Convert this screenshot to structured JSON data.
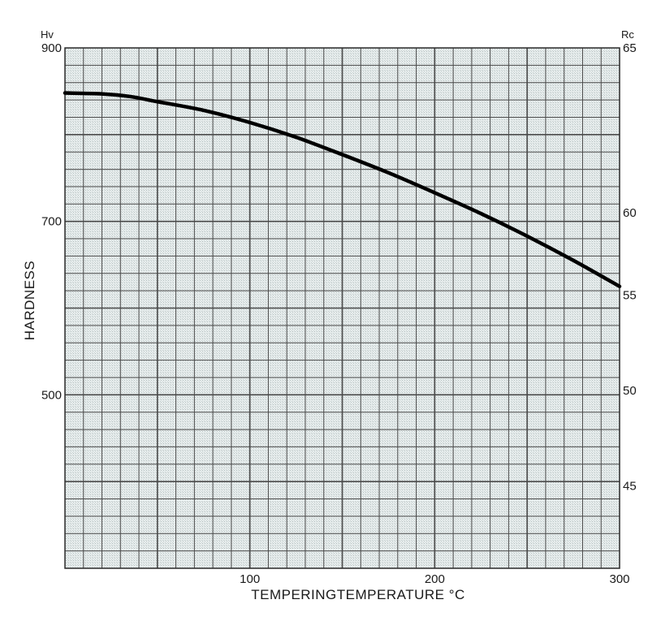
{
  "chart_data": {
    "type": "line",
    "title": "",
    "xlabel": "TEMPERINGTEMPERATURE °C",
    "ylabel": "HARDNESS",
    "left_axis_unit": "Hv",
    "right_axis_unit": "Rc",
    "xlim": [
      0,
      300
    ],
    "ylim": [
      300,
      900
    ],
    "x_ticks": [
      "100",
      "200",
      "300"
    ],
    "y_ticks": [
      "900",
      "700",
      "500"
    ],
    "right_ticks": [
      "65",
      "60",
      "55",
      "50",
      "45"
    ],
    "grid": true,
    "line_color": "#000000",
    "grid_color": "#4a4a4a",
    "background_color": "#dfe6e6",
    "series": [
      {
        "x": [
          0,
          20,
          35,
          50,
          75,
          100,
          125,
          150,
          175,
          200,
          225,
          250,
          275,
          300
        ],
        "y": [
          848,
          847,
          844,
          838,
          828,
          814,
          797,
          777,
          756,
          733,
          709,
          683,
          655,
          625
        ]
      }
    ],
    "right_axis_map": {
      "65": 900,
      "60": 710,
      "55": 615,
      "50": 505,
      "45": 395
    }
  }
}
